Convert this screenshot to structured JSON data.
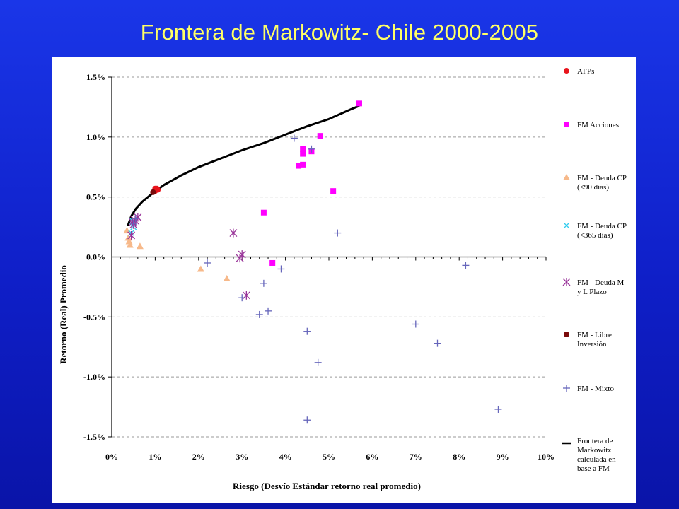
{
  "slide": {
    "title": "Frontera de Markowitz- Chile 2000-2005"
  },
  "chart_data": {
    "type": "scatter",
    "title": "Frontera de Markowitz- Chile 2000-2005",
    "xlabel": "Riesgo (Desvío Estándar retorno real promedio)",
    "ylabel": "Retorno (Real) Promedio",
    "xlim": [
      0,
      10
    ],
    "ylim": [
      -1.5,
      1.5
    ],
    "x_ticks": [
      "0%",
      "1%",
      "2%",
      "3%",
      "4%",
      "5%",
      "6%",
      "7%",
      "8%",
      "9%",
      "10%"
    ],
    "y_ticks": [
      "1.5%",
      "1.0%",
      "0.5%",
      "0.0%",
      "-0.5%",
      "-1.0%",
      "-1.5%"
    ],
    "y_tick_values": [
      1.5,
      1.0,
      0.5,
      0.0,
      -0.5,
      -1.0,
      -1.5
    ],
    "grid": "horizontal dashed",
    "legend_position": "right",
    "series": [
      {
        "name": "AFPs",
        "marker": "circle",
        "color": "#e8141c",
        "points": [
          [
            1.0,
            0.55
          ],
          [
            1.02,
            0.56
          ],
          [
            1.04,
            0.57
          ],
          [
            1.06,
            0.56
          ],
          [
            1.0,
            0.57
          ]
        ]
      },
      {
        "name": "FM Acciones",
        "marker": "square",
        "color": "#ff00ff",
        "points": [
          [
            5.7,
            1.28
          ],
          [
            4.8,
            1.01
          ],
          [
            4.4,
            0.9
          ],
          [
            4.4,
            0.86
          ],
          [
            4.6,
            0.88
          ],
          [
            4.3,
            0.76
          ],
          [
            4.4,
            0.77
          ],
          [
            5.1,
            0.55
          ],
          [
            3.5,
            0.37
          ],
          [
            3.7,
            -0.05
          ]
        ]
      },
      {
        "name": "FM - Deuda CP (<90 días)",
        "marker": "triangle",
        "color": "#f7b98a",
        "points": [
          [
            0.35,
            0.22
          ],
          [
            0.38,
            0.16
          ],
          [
            0.4,
            0.13
          ],
          [
            0.42,
            0.1
          ],
          [
            0.65,
            0.09
          ],
          [
            2.05,
            -0.1
          ],
          [
            2.65,
            -0.18
          ]
        ]
      },
      {
        "name": "FM - Deuda CP (<365 días)",
        "marker": "x",
        "color": "#33ccee",
        "points": [
          [
            0.45,
            0.2
          ],
          [
            0.5,
            0.25
          ],
          [
            0.48,
            0.3
          ]
        ]
      },
      {
        "name": "FM - Deuda M y L Plazo",
        "marker": "asterisk",
        "color": "#993399",
        "points": [
          [
            0.45,
            0.18
          ],
          [
            0.5,
            0.27
          ],
          [
            0.55,
            0.3
          ],
          [
            0.6,
            0.33
          ],
          [
            0.48,
            0.29
          ],
          [
            0.52,
            0.31
          ],
          [
            2.8,
            0.2
          ],
          [
            3.0,
            0.02
          ],
          [
            3.1,
            -0.32
          ],
          [
            2.95,
            -0.01
          ]
        ]
      },
      {
        "name": "FM - Libre Inversión",
        "marker": "circle",
        "color": "#7a0a0a",
        "points": [
          [
            0.95,
            0.54
          ]
        ]
      },
      {
        "name": "FM - Mixto",
        "marker": "plus",
        "color": "#6666bb",
        "points": [
          [
            4.2,
            0.99
          ],
          [
            4.6,
            0.9
          ],
          [
            5.2,
            0.2
          ],
          [
            2.2,
            -0.05
          ],
          [
            3.9,
            -0.1
          ],
          [
            3.5,
            -0.22
          ],
          [
            3.0,
            -0.34
          ],
          [
            3.6,
            -0.45
          ],
          [
            3.4,
            -0.48
          ],
          [
            4.5,
            -0.62
          ],
          [
            4.75,
            -0.88
          ],
          [
            7.0,
            -0.56
          ],
          [
            7.5,
            -0.72
          ],
          [
            8.15,
            -0.07
          ],
          [
            8.9,
            -1.27
          ],
          [
            4.5,
            -1.36
          ],
          [
            0.5,
            0.28
          ],
          [
            0.55,
            0.32
          ]
        ]
      },
      {
        "name": "Frontera de Markowitz calculada en base a FM",
        "marker": "line",
        "color": "#000000",
        "points": [
          [
            0.37,
            0.26
          ],
          [
            0.45,
            0.34
          ],
          [
            0.55,
            0.4
          ],
          [
            0.7,
            0.46
          ],
          [
            0.9,
            0.52
          ],
          [
            1.2,
            0.6
          ],
          [
            1.6,
            0.68
          ],
          [
            2.0,
            0.75
          ],
          [
            2.5,
            0.82
          ],
          [
            3.0,
            0.89
          ],
          [
            3.5,
            0.95
          ],
          [
            4.0,
            1.02
          ],
          [
            4.5,
            1.09
          ],
          [
            5.0,
            1.15
          ],
          [
            5.5,
            1.23
          ],
          [
            5.7,
            1.26
          ]
        ]
      }
    ]
  }
}
